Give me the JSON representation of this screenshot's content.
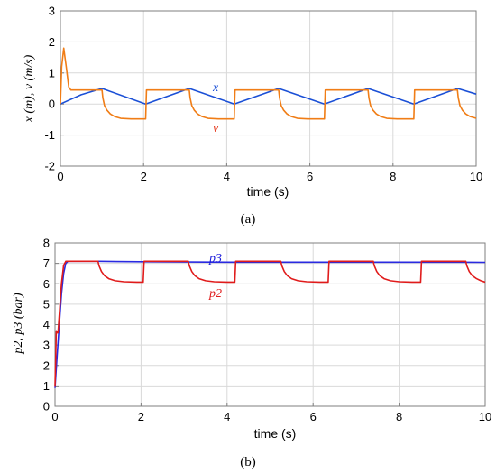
{
  "chart_data": [
    {
      "type": "line",
      "panel": "a",
      "caption": "(a)",
      "xlabel": "time (s)",
      "ylabel": "x (m), v (m/s)",
      "xlim": [
        0,
        10
      ],
      "ylim": [
        -2,
        3
      ],
      "x_ticks": [
        "0",
        "2",
        "4",
        "6",
        "8",
        "10"
      ],
      "y_ticks": [
        "-2",
        "-1",
        "0",
        "1",
        "2",
        "3"
      ],
      "grid": true,
      "annotations": [
        {
          "text": "x",
          "series": "x",
          "color": "#1a4fd6"
        },
        {
          "text": "v",
          "series": "v",
          "color": "#e53b1f"
        }
      ],
      "series": [
        {
          "name": "x",
          "color": "#1a4fd6",
          "x": [
            0.0,
            0.5,
            1.0,
            2.05,
            3.1,
            4.18,
            5.25,
            6.35,
            7.4,
            8.5,
            9.55,
            10.0
          ],
          "y": [
            0.0,
            0.3,
            0.5,
            0.0,
            0.5,
            0.0,
            0.5,
            0.0,
            0.5,
            0.0,
            0.5,
            0.32
          ]
        },
        {
          "name": "v",
          "color": "#f07d16",
          "x": [
            0.0,
            0.03,
            0.08,
            0.14,
            0.2,
            0.25,
            0.3,
            0.4,
            1.0,
            1.02,
            1.06,
            1.12,
            1.2,
            1.3,
            1.45,
            1.7,
            2.0,
            2.05,
            2.07,
            3.1,
            3.12,
            3.16,
            3.22,
            3.3,
            3.4,
            3.55,
            3.8,
            4.18,
            4.2,
            5.25,
            5.27,
            5.31,
            5.37,
            5.45,
            5.55,
            5.7,
            5.95,
            6.35,
            6.37,
            7.4,
            7.42,
            7.46,
            7.52,
            7.6,
            7.7,
            7.85,
            8.1,
            8.5,
            8.52,
            9.55,
            9.57,
            9.61,
            9.67,
            9.75,
            9.85,
            10.0
          ],
          "y": [
            0.0,
            1.2,
            1.8,
            1.2,
            0.55,
            0.45,
            0.45,
            0.45,
            0.45,
            0.2,
            -0.05,
            -0.2,
            -0.32,
            -0.4,
            -0.46,
            -0.48,
            -0.48,
            -0.48,
            0.45,
            0.45,
            0.2,
            -0.05,
            -0.2,
            -0.32,
            -0.4,
            -0.46,
            -0.48,
            -0.48,
            0.45,
            0.45,
            0.2,
            -0.05,
            -0.2,
            -0.32,
            -0.4,
            -0.46,
            -0.48,
            -0.48,
            0.45,
            0.45,
            0.2,
            -0.05,
            -0.2,
            -0.32,
            -0.4,
            -0.46,
            -0.48,
            -0.48,
            0.45,
            0.45,
            0.2,
            -0.05,
            -0.2,
            -0.32,
            -0.4,
            -0.46
          ]
        }
      ]
    },
    {
      "type": "line",
      "panel": "b",
      "caption": "(b)",
      "xlabel": "time (s)",
      "ylabel": "p2, p3 (bar)",
      "xlim": [
        0,
        10
      ],
      "ylim": [
        0,
        8
      ],
      "x_ticks": [
        "0",
        "2",
        "4",
        "6",
        "8",
        "10"
      ],
      "y_ticks": [
        "0",
        "1",
        "2",
        "3",
        "4",
        "5",
        "6",
        "7",
        "8"
      ],
      "grid": true,
      "annotations": [
        {
          "text": "p3",
          "series": "p3",
          "color": "#1a1adb"
        },
        {
          "text": "p2",
          "series": "p2",
          "color": "#e01b1b"
        }
      ],
      "series": [
        {
          "name": "p3",
          "color": "#2a2ae0",
          "x": [
            0.0,
            0.05,
            0.1,
            0.15,
            0.2,
            0.25,
            0.3,
            1.0,
            2.0,
            3.0,
            4.0,
            5.0,
            6.0,
            7.0,
            8.0,
            9.0,
            10.0
          ],
          "y": [
            0.9,
            2.5,
            4.0,
            5.5,
            6.5,
            7.0,
            7.1,
            7.1,
            7.08,
            7.07,
            7.06,
            7.06,
            7.06,
            7.06,
            7.06,
            7.06,
            7.05
          ]
        },
        {
          "name": "p2",
          "color": "#e01b1b",
          "x": [
            0.0,
            0.03,
            0.05,
            0.07,
            0.1,
            0.15,
            0.2,
            0.25,
            0.3,
            1.0,
            1.02,
            1.08,
            1.15,
            1.25,
            1.4,
            1.6,
            1.9,
            2.05,
            2.07,
            3.1,
            3.12,
            3.18,
            3.25,
            3.35,
            3.5,
            3.7,
            4.0,
            4.18,
            4.2,
            5.25,
            5.27,
            5.33,
            5.4,
            5.5,
            5.65,
            5.85,
            6.15,
            6.35,
            6.37,
            7.4,
            7.42,
            7.48,
            7.55,
            7.65,
            7.8,
            8.0,
            8.3,
            8.5,
            8.52,
            9.55,
            9.57,
            9.63,
            9.7,
            9.8,
            9.9,
            10.0
          ],
          "y": [
            1.0,
            3.7,
            3.6,
            3.6,
            4.5,
            6.0,
            6.9,
            7.1,
            7.1,
            7.1,
            6.9,
            6.6,
            6.4,
            6.25,
            6.15,
            6.1,
            6.08,
            6.08,
            7.1,
            7.1,
            6.9,
            6.6,
            6.4,
            6.25,
            6.15,
            6.1,
            6.08,
            6.08,
            7.1,
            7.1,
            6.9,
            6.6,
            6.4,
            6.25,
            6.15,
            6.1,
            6.08,
            6.08,
            7.1,
            7.1,
            6.9,
            6.6,
            6.4,
            6.25,
            6.15,
            6.1,
            6.08,
            6.08,
            7.1,
            7.1,
            6.9,
            6.6,
            6.4,
            6.25,
            6.15,
            6.08
          ]
        }
      ]
    }
  ]
}
